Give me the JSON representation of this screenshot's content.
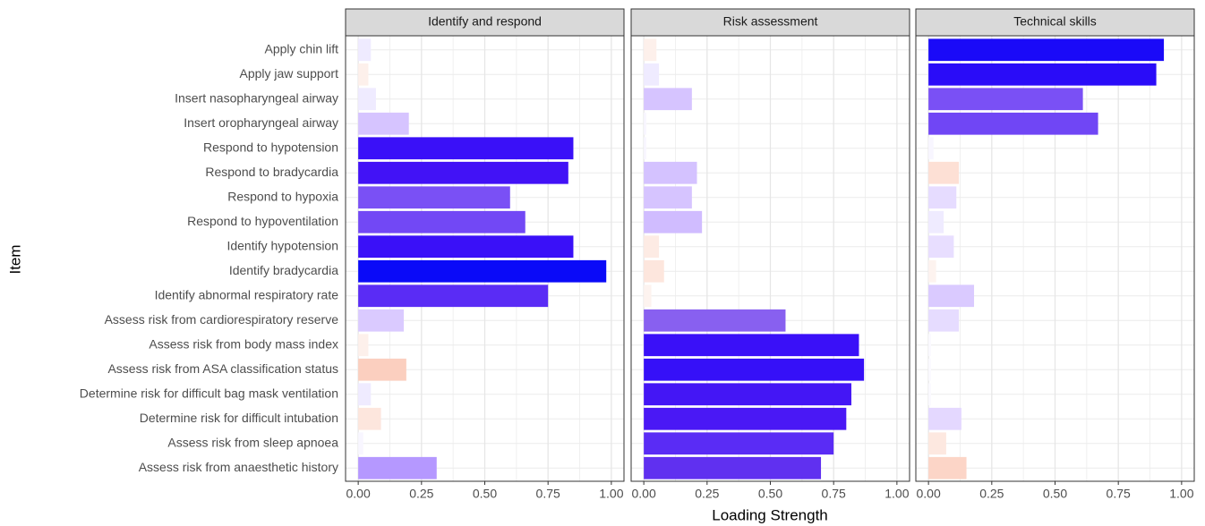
{
  "chart_data": {
    "type": "bar",
    "orientation": "horizontal",
    "x_label": "Loading Strength",
    "y_label": "Item",
    "categories": [
      "Apply chin lift",
      "Apply jaw support",
      "Insert nasopharyngeal airway",
      "Insert oropharyngeal airway",
      "Respond to hypotension",
      "Respond to bradycardia",
      "Respond to hypoxia",
      "Respond to hypoventilation",
      "Identify hypotension",
      "Identify bradycardia",
      "Identify abnormal respiratory rate",
      "Assess risk from cardiorespiratory reserve",
      "Assess risk from body mass index",
      "Assess risk from ASA classification status",
      "Determine risk for difficult bag mask ventilation",
      "Determine risk for difficult intubation",
      "Assess risk from sleep apnoea",
      "Assess risk from anaesthetic history"
    ],
    "xlim": [
      -0.05,
      1.05
    ],
    "xticks": [
      {
        "value": 0,
        "label": "0.00"
      },
      {
        "value": 0.25,
        "label": "0.25"
      },
      {
        "value": 0.5,
        "label": "0.50"
      },
      {
        "value": 0.75,
        "label": "0.75"
      },
      {
        "value": 1,
        "label": "1.00"
      }
    ],
    "grid": true,
    "panels": [
      {
        "title": "Identify and respond",
        "values": [
          0.05,
          0.04,
          0.07,
          0.2,
          0.85,
          0.83,
          0.6,
          0.66,
          0.85,
          0.98,
          0.75,
          0.18,
          0.04,
          0.19,
          0.05,
          0.09,
          0.02,
          0.31
        ],
        "colors": [
          "#efebff",
          "#fdf0eb",
          "#efebff",
          "#d6c4ff",
          "#3a10f8",
          "#4212f6",
          "#7a50f5",
          "#7248f5",
          "#3a10f8",
          "#0a0af8",
          "#5a2cf5",
          "#dacaff",
          "#fdf0eb",
          "#fbcfbf",
          "#efebff",
          "#fde6dd",
          "#f8f6ff",
          "#b598ff"
        ]
      },
      {
        "title": "Risk assessment",
        "values": [
          0.05,
          0.06,
          0.19,
          0.01,
          0.01,
          0.21,
          0.19,
          0.23,
          0.06,
          0.08,
          0.03,
          0.56,
          0.85,
          0.87,
          0.82,
          0.8,
          0.75,
          0.7
        ],
        "colors": [
          "#fdf0eb",
          "#efebff",
          "#d6c4ff",
          "#f8f6ff",
          "#f8f6ff",
          "#d4c2ff",
          "#d6c4ff",
          "#d0bcff",
          "#fdebe4",
          "#fde6dd",
          "#fdf3ef",
          "#8860f0",
          "#3a10f8",
          "#3610f8",
          "#4416f5",
          "#4a18f5",
          "#5a2cf5",
          "#6030f0"
        ]
      },
      {
        "title": "Technical skills",
        "values": [
          0.93,
          0.9,
          0.61,
          0.67,
          0.02,
          0.12,
          0.11,
          0.06,
          0.1,
          0.03,
          0.18,
          0.12,
          0.01,
          0.01,
          0.01,
          0.13,
          0.07,
          0.15
        ],
        "colors": [
          "#1a0af8",
          "#2a0cf8",
          "#7a50f5",
          "#7046f5",
          "#f8f6ff",
          "#fde0d5",
          "#e6dcff",
          "#efebff",
          "#e8deff",
          "#fdf3ef",
          "#dacaff",
          "#e6dcff",
          "#fbfaff",
          "#fbfaff",
          "#fbfaff",
          "#e4d8ff",
          "#fde8e0",
          "#fcd5c7"
        ]
      }
    ]
  }
}
